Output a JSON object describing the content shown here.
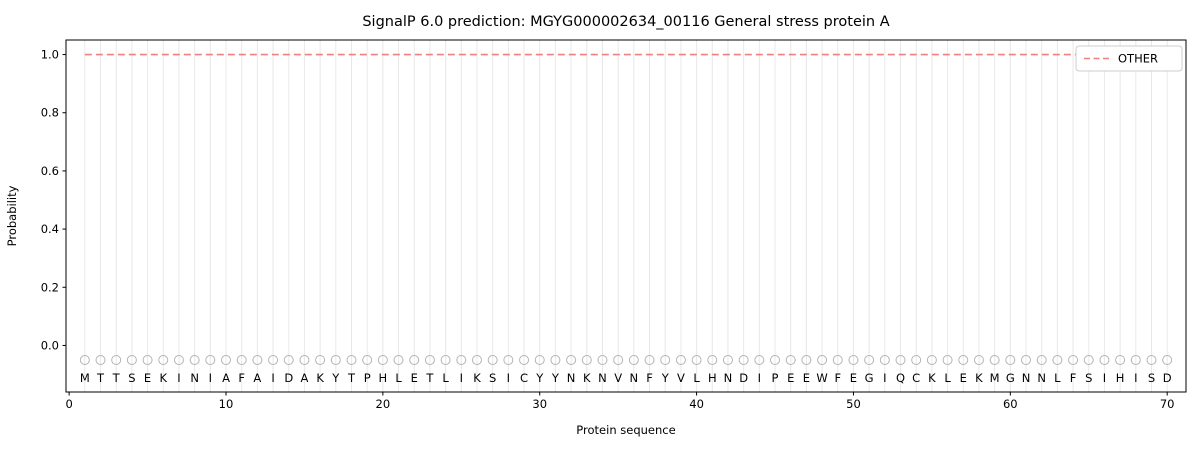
{
  "chart_data": {
    "type": "line",
    "title": "SignalP 6.0 prediction: MGYG000002634_00116 General stress protein A",
    "xlabel": "Protein sequence",
    "ylabel": "Probability",
    "xlim": [
      -0.2,
      71.2
    ],
    "ylim": [
      -0.16,
      1.05
    ],
    "xticks": [
      0,
      10,
      20,
      30,
      40,
      50,
      60,
      70
    ],
    "yticks": [
      0.0,
      0.2,
      0.4,
      0.6,
      0.8,
      1.0
    ],
    "grid": "vertical-gridline-per-residue",
    "sequence": "MTTSEKINIAFAIDAKYTPHLETLIKSICYYNKNVNFYVLHNDIPEEWFEGIQCKLEKMGNNLFSIHISD",
    "series": [
      {
        "name": "OTHER",
        "value": 1.0,
        "x_start": 1,
        "x_end": 70,
        "color": "#f08080",
        "style": "dashed"
      }
    ],
    "residue_markers": {
      "shape": "open-circle",
      "y": -0.05,
      "color": "#b3b3b3"
    },
    "legend": {
      "position": "upper right",
      "entries": [
        {
          "label": "OTHER",
          "color": "#f08080",
          "dash": true
        }
      ]
    },
    "colors": {
      "grid": "#e8e8e8",
      "marker": "#b3b3b3",
      "letter": "#262626",
      "spine": "#000000",
      "legend_border": "#cccccc"
    }
  }
}
